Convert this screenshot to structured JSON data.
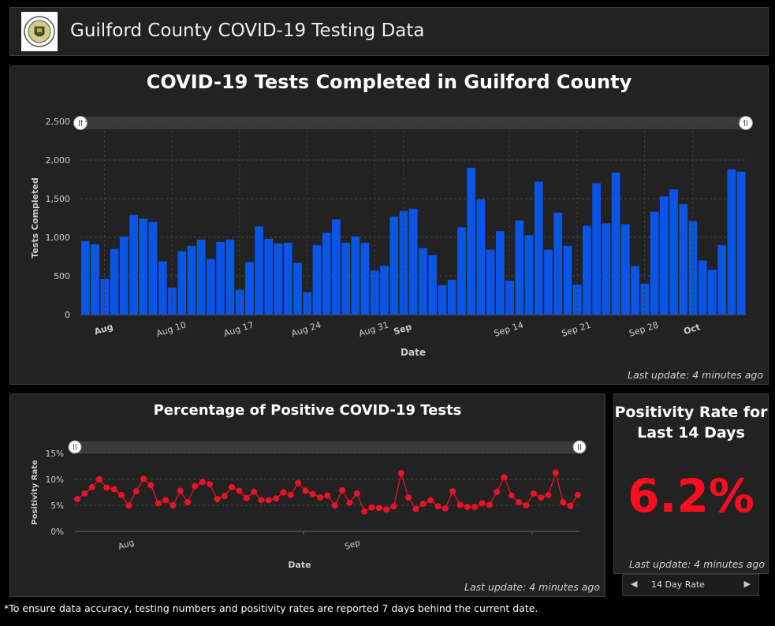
{
  "header": {
    "title": "Guilford County COVID-19 Testing Data",
    "logo_icon": "county-seal-icon"
  },
  "colors": {
    "bar": "#0a54e6",
    "line": "#e81323",
    "rate": "#ff0d1f",
    "panel": "#222222"
  },
  "tests_chart": {
    "update": "Last update: 4 minutes ago",
    "chart_data": {
      "type": "bar",
      "title": "COVID-19 Tests Completed in Guilford County",
      "xlabel": "Date",
      "ylabel": "Tests Completed",
      "ylim": [
        0,
        2500
      ],
      "y_ticks": [
        "0",
        "500",
        "1,000",
        "1,500",
        "2,000",
        "2,500"
      ],
      "x_ticks": [
        {
          "label": "Aug",
          "bold": true
        },
        {
          "label": "Aug 10",
          "bold": false
        },
        {
          "label": "Aug 17",
          "bold": false
        },
        {
          "label": "Aug 24",
          "bold": false
        },
        {
          "label": "Aug 31",
          "bold": false
        },
        {
          "label": "Sep",
          "bold": true
        },
        {
          "label": "Sep 14",
          "bold": false
        },
        {
          "label": "Sep 21",
          "bold": false
        },
        {
          "label": "Sep 28",
          "bold": false
        },
        {
          "label": "Oct",
          "bold": true
        }
      ],
      "x_range": [
        "Jul 30",
        "Oct 8"
      ],
      "grid": true,
      "values": [
        950,
        910,
        460,
        850,
        1010,
        1290,
        1240,
        1200,
        690,
        350,
        820,
        890,
        970,
        720,
        940,
        970,
        320,
        680,
        1140,
        980,
        920,
        930,
        670,
        290,
        900,
        1060,
        1230,
        930,
        1010,
        930,
        570,
        630,
        1270,
        1340,
        1370,
        860,
        770,
        380,
        450,
        1130,
        1900,
        1490,
        840,
        1080,
        440,
        1220,
        1030,
        1720,
        840,
        1320,
        890,
        390,
        1150,
        1700,
        1180,
        1840,
        1170,
        630,
        400,
        1330,
        1530,
        1620,
        1430,
        1210,
        700,
        580,
        900,
        1880,
        1850
      ]
    }
  },
  "positivity_chart": {
    "update": "Last update: 4 minutes ago",
    "chart_data": {
      "type": "line",
      "title": "Percentage of Positive COVID-19 Tests",
      "xlabel": "Date",
      "ylabel": "Positivity Rate",
      "ylim": [
        0,
        15
      ],
      "y_ticks": [
        "0%",
        "5%",
        "10%",
        "15%"
      ],
      "x_ticks": [
        "Aug",
        "Sep"
      ],
      "grid": true,
      "values": [
        6.2,
        7.3,
        8.5,
        10.0,
        8.4,
        8.1,
        7.0,
        5.0,
        7.7,
        10.1,
        8.9,
        5.4,
        6.0,
        5.0,
        7.8,
        5.6,
        8.7,
        9.5,
        9.1,
        6.2,
        6.8,
        8.5,
        7.8,
        6.4,
        7.6,
        6.0,
        6.0,
        6.3,
        7.5,
        7.0,
        9.3,
        7.8,
        7.2,
        6.5,
        6.9,
        5.0,
        7.9,
        5.5,
        7.3,
        3.8,
        4.6,
        4.5,
        4.2,
        4.8,
        11.2,
        6.5,
        4.3,
        5.3,
        6.0,
        4.8,
        4.4,
        7.7,
        5.1,
        4.7,
        4.7,
        5.4,
        5.1,
        7.6,
        10.4,
        6.9,
        5.6,
        5.0,
        7.3,
        6.5,
        7.0,
        11.3,
        5.6,
        4.9,
        7.0
      ]
    }
  },
  "rate_panel": {
    "title": "Positivity Rate for Last 14 Days",
    "value": "6.2%",
    "update": "Last update: 4 minutes ago",
    "nav_label": "14 Day Rate",
    "prev_icon": "chevron-left-icon",
    "next_icon": "chevron-right-icon"
  },
  "footnote": "*To ensure data accuracy, testing numbers and positivity rates are reported 7 days behind the current date."
}
